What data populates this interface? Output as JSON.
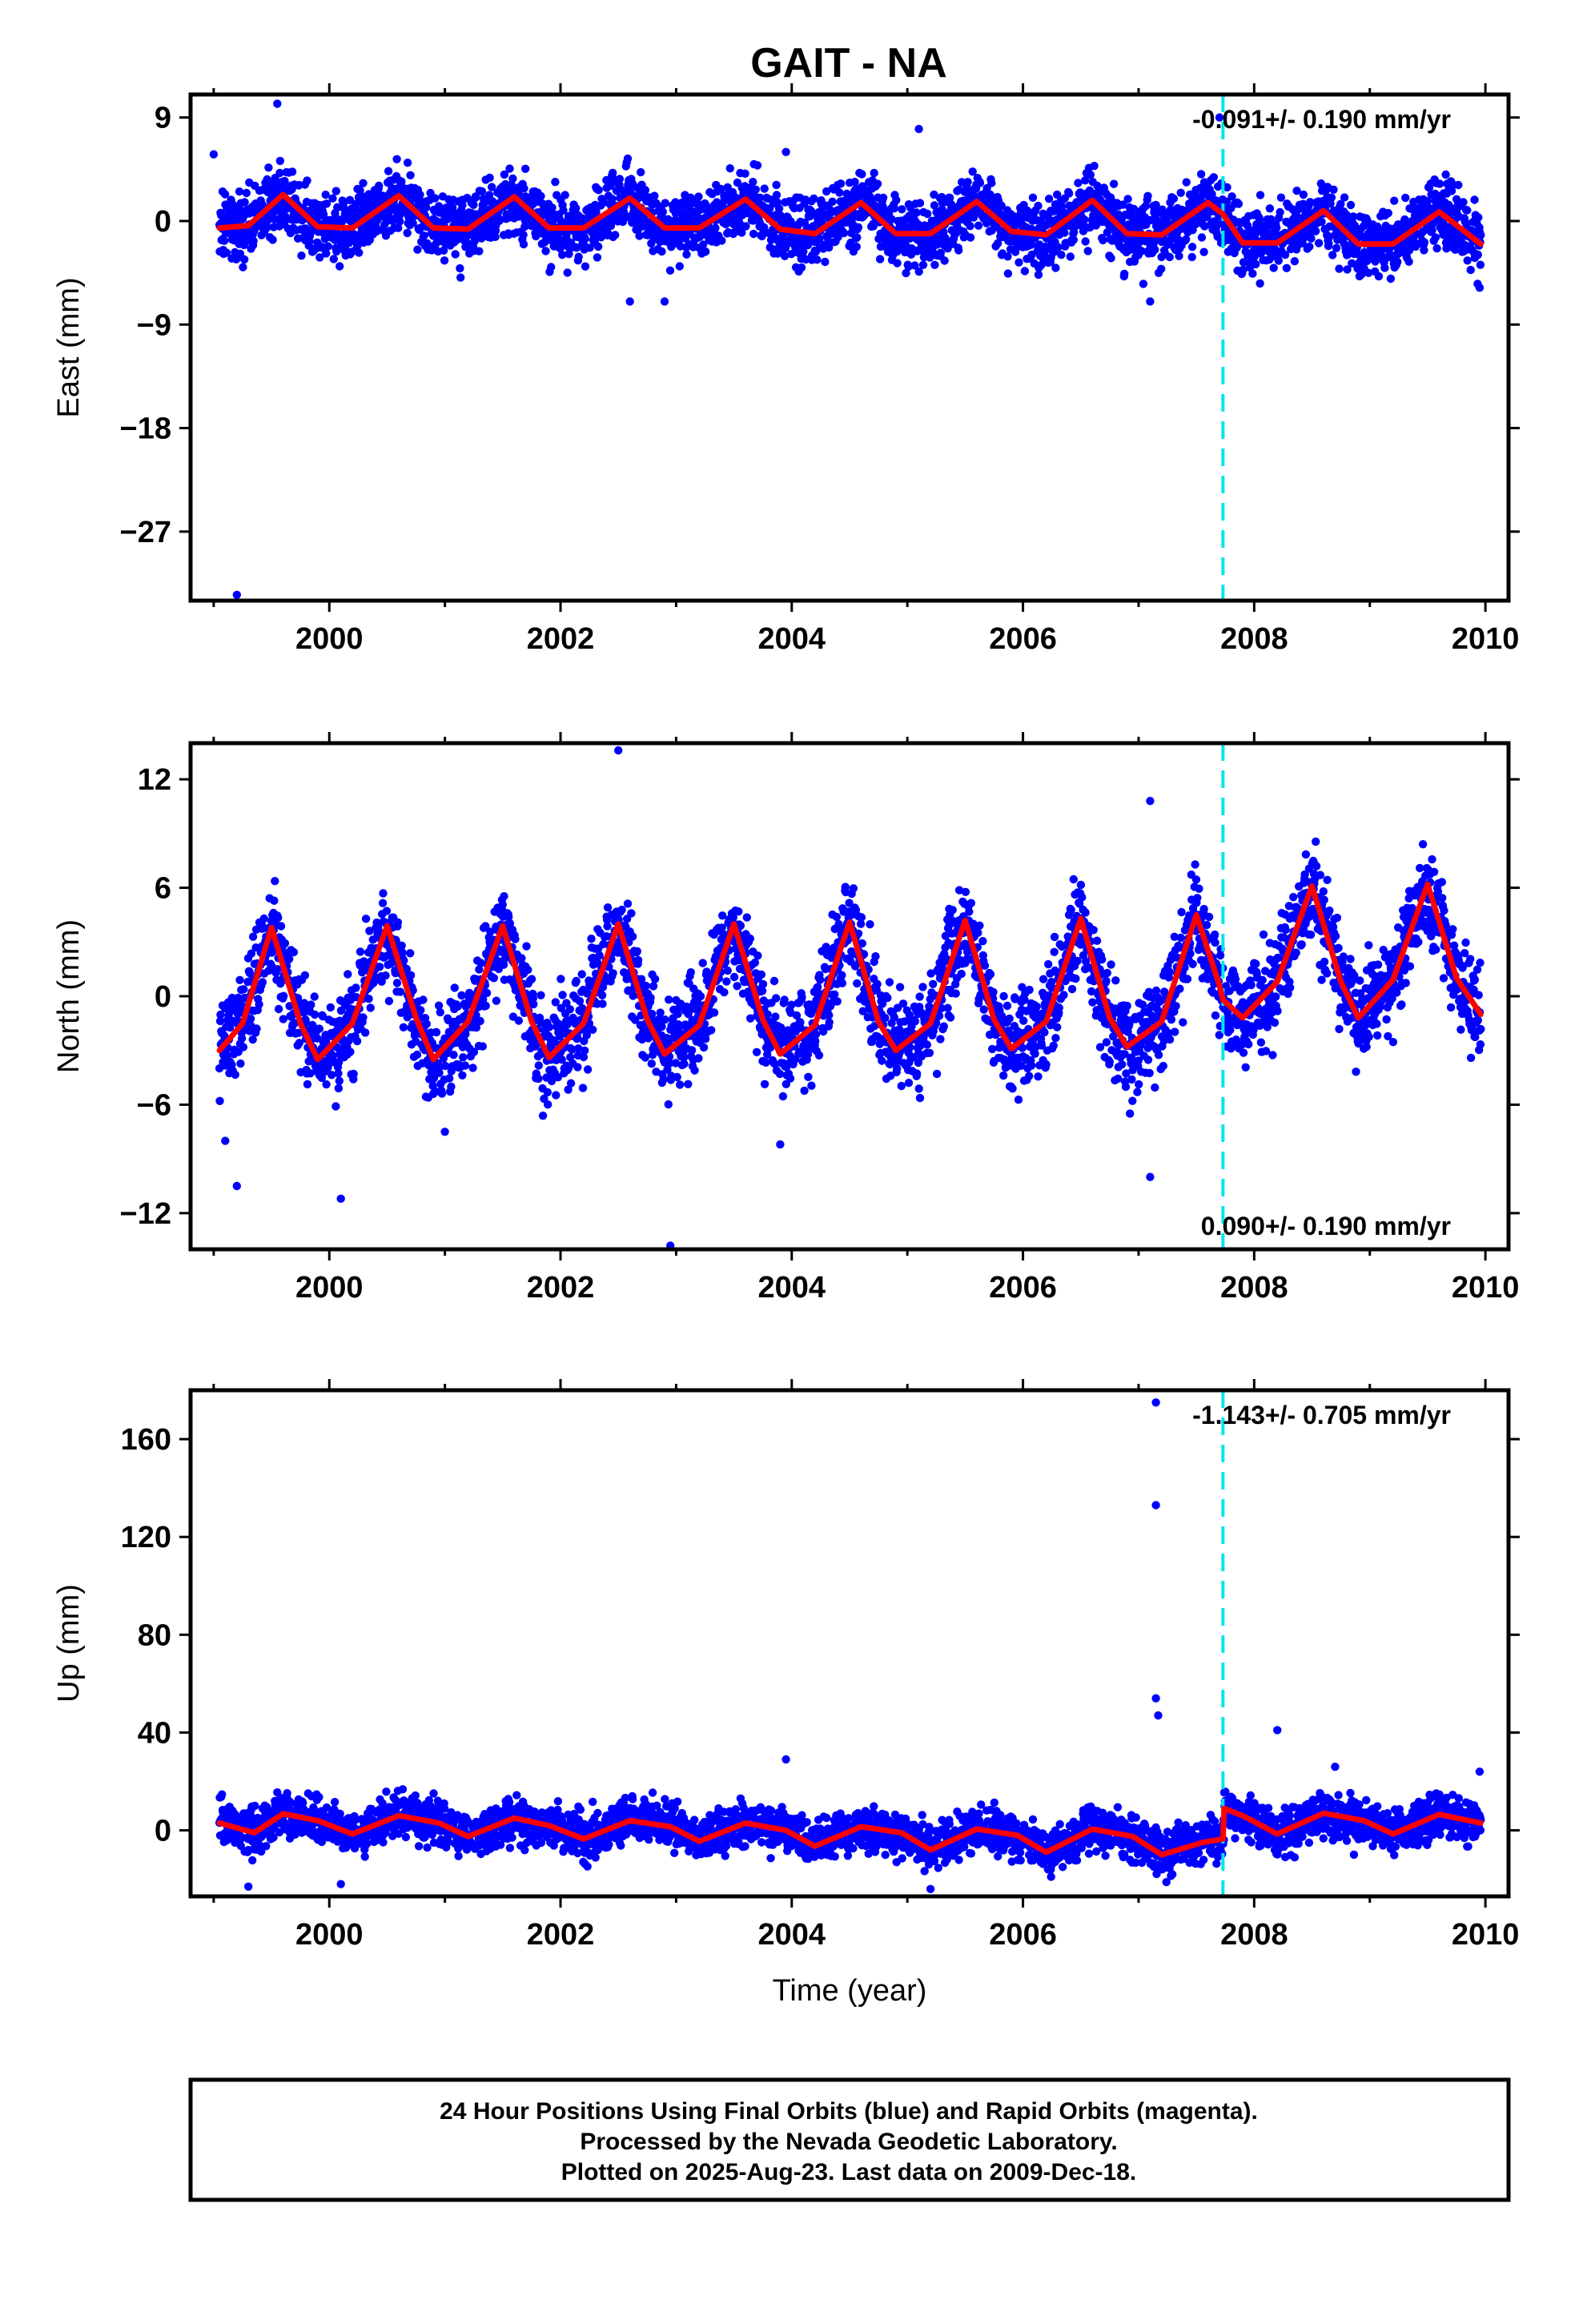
{
  "title": "GAIT - NA",
  "footer": {
    "line1": "24 Hour Positions Using Final Orbits (blue) and Rapid Orbits (magenta).",
    "line2": "Processed by the Nevada Geodetic Laboratory.",
    "line3": "Plotted on 2025-Aug-23. Last data on 2009-Dec-18."
  },
  "colors": {
    "points": "#0000ff",
    "fit": "#ff0000",
    "break": "#00e5ee",
    "frame": "#000000"
  },
  "chart_data": [
    {
      "type": "scatter",
      "component": "east",
      "ylabel": "East (mm)",
      "xlabel": "",
      "xlim": [
        1998.8,
        2010.2
      ],
      "ylim": [
        -33,
        11
      ],
      "xticks": [
        2000,
        2002,
        2004,
        2006,
        2008,
        2010
      ],
      "xtick_labels": [
        "2000",
        "2002",
        "2004",
        "2006",
        "2008",
        "2010"
      ],
      "yticks": [
        9,
        0,
        -9,
        -18,
        -27
      ],
      "ytick_labels": [
        "9",
        "0",
        "−9",
        "−18",
        "−27"
      ],
      "rate_label": "-0.091+/- 0.190 mm/yr",
      "rate_position": "top-right",
      "break_x": 2007.73,
      "series": [
        {
          "kind": "daily_positions",
          "time_range": [
            1999.05,
            2009.96
          ],
          "seasonal_amplitude": 1.5,
          "noise_sd": 1.4,
          "outliers": [
            [
              1999.2,
              -32.5
            ],
            [
              1999.55,
              10.2
            ],
            [
              2005.1,
              8.0
            ],
            [
              2007.7,
              9.0
            ],
            [
              2003.95,
              6.0
            ],
            [
              1999.0,
              5.8
            ],
            [
              2009.95,
              -5.8
            ],
            [
              2002.6,
              -7.0
            ],
            [
              2002.9,
              -7.0
            ],
            [
              2007.1,
              -7.0
            ]
          ]
        },
        {
          "kind": "model_fit",
          "x": [
            1999.05,
            1999.3,
            1999.6,
            1999.9,
            2000.2,
            2000.6,
            2000.9,
            2001.2,
            2001.6,
            2001.9,
            2002.2,
            2002.6,
            2002.9,
            2003.2,
            2003.6,
            2003.9,
            2004.2,
            2004.6,
            2004.9,
            2005.2,
            2005.6,
            2005.9,
            2006.2,
            2006.6,
            2006.9,
            2007.2,
            2007.6,
            2007.73,
            2007.9,
            2008.2,
            2008.6,
            2008.9,
            2009.2,
            2009.6,
            2009.96
          ],
          "y": [
            -0.6,
            -0.4,
            2.3,
            -0.5,
            -0.6,
            2.2,
            -0.6,
            -0.7,
            2.1,
            -0.6,
            -0.6,
            2.0,
            -0.6,
            -0.6,
            1.9,
            -0.7,
            -1.1,
            1.6,
            -1.1,
            -1.1,
            1.7,
            -0.9,
            -1.2,
            1.8,
            -1.1,
            -1.2,
            1.6,
            0.6,
            -1.9,
            -1.9,
            0.9,
            -2.0,
            -2.0,
            0.8,
            -2.0
          ]
        }
      ]
    },
    {
      "type": "scatter",
      "component": "north",
      "ylabel": "North (mm)",
      "xlabel": "",
      "xlim": [
        1998.8,
        2010.2
      ],
      "ylim": [
        -14,
        14
      ],
      "xticks": [
        2000,
        2002,
        2004,
        2006,
        2008,
        2010
      ],
      "xtick_labels": [
        "2000",
        "2002",
        "2004",
        "2006",
        "2008",
        "2010"
      ],
      "yticks": [
        12,
        6,
        0,
        -6,
        -12
      ],
      "ytick_labels": [
        "12",
        "6",
        "0",
        "−6",
        "−12"
      ],
      "rate_label": "0.090+/- 0.190 mm/yr",
      "rate_position": "bottom-right",
      "break_x": 2007.73,
      "series": [
        {
          "kind": "daily_positions",
          "time_range": [
            1999.05,
            2009.96
          ],
          "seasonal_amplitude": 3.8,
          "noise_sd": 1.3,
          "outliers": [
            [
              2002.5,
              13.6
            ],
            [
              2002.95,
              -13.8
            ],
            [
              1999.2,
              -10.5
            ],
            [
              2000.1,
              -11.2
            ],
            [
              2007.1,
              10.8
            ],
            [
              2007.1,
              -10.0
            ],
            [
              1999.1,
              -8.0
            ],
            [
              2003.9,
              -8.2
            ],
            [
              2001.0,
              -7.5
            ]
          ]
        },
        {
          "kind": "model_fit",
          "x": [
            1999.05,
            1999.25,
            1999.5,
            1999.75,
            1999.9,
            2000.2,
            2000.5,
            2000.75,
            2000.9,
            2001.2,
            2001.5,
            2001.75,
            2001.9,
            2002.2,
            2002.5,
            2002.75,
            2002.9,
            2003.2,
            2003.5,
            2003.75,
            2003.9,
            2004.2,
            2004.5,
            2004.75,
            2004.9,
            2005.2,
            2005.5,
            2005.75,
            2005.9,
            2006.2,
            2006.5,
            2006.75,
            2006.9,
            2007.2,
            2007.5,
            2007.7,
            2007.73,
            2007.9,
            2008.2,
            2008.5,
            2008.75,
            2008.9,
            2009.2,
            2009.5,
            2009.75,
            2009.96
          ],
          "y": [
            -3.0,
            -1.5,
            3.8,
            -1.5,
            -3.5,
            -1.5,
            3.9,
            -1.2,
            -3.5,
            -1.4,
            3.9,
            -1.4,
            -3.4,
            -1.5,
            4.0,
            -1.3,
            -3.2,
            -1.6,
            4.0,
            -1.3,
            -3.2,
            -1.6,
            4.1,
            -1.4,
            -3.0,
            -1.5,
            4.2,
            -1.3,
            -2.9,
            -1.4,
            4.3,
            -1.2,
            -2.8,
            -1.4,
            4.5,
            0.6,
            -0.2,
            -1.2,
            0.8,
            6.1,
            0.8,
            -1.2,
            0.9,
            6.2,
            1.0,
            -1.0
          ]
        }
      ]
    },
    {
      "type": "scatter",
      "component": "up",
      "ylabel": "Up (mm)",
      "xlabel": "Time (year)",
      "xlim": [
        1998.8,
        2010.2
      ],
      "ylim": [
        -27,
        180
      ],
      "xticks": [
        2000,
        2002,
        2004,
        2006,
        2008,
        2010
      ],
      "xtick_labels": [
        "2000",
        "2002",
        "2004",
        "2006",
        "2008",
        "2010"
      ],
      "yticks": [
        160,
        120,
        80,
        40,
        0
      ],
      "ytick_labels": [
        "160",
        "120",
        "80",
        "40",
        "0"
      ],
      "rate_label": "-1.143+/- 0.705 mm/yr",
      "rate_position": "top-right",
      "break_x": 2007.73,
      "series": [
        {
          "kind": "daily_positions",
          "time_range": [
            1999.05,
            2009.96
          ],
          "seasonal_amplitude": 4.5,
          "noise_sd": 4.5,
          "outliers": [
            [
              2007.15,
              175
            ],
            [
              2007.15,
              133
            ],
            [
              2007.15,
              54
            ],
            [
              2007.17,
              47
            ],
            [
              2008.2,
              41
            ],
            [
              2003.95,
              29
            ],
            [
              2009.95,
              24
            ],
            [
              2008.7,
              26
            ],
            [
              1999.3,
              -23
            ],
            [
              2005.2,
              -24
            ],
            [
              2000.1,
              -22
            ]
          ]
        },
        {
          "kind": "model_fit",
          "x": [
            1999.05,
            1999.35,
            1999.6,
            1999.9,
            2000.2,
            2000.6,
            2000.95,
            2001.2,
            2001.6,
            2001.9,
            2002.2,
            2002.6,
            2002.95,
            2003.2,
            2003.6,
            2003.95,
            2004.2,
            2004.6,
            2004.95,
            2005.2,
            2005.6,
            2005.95,
            2006.2,
            2006.6,
            2006.95,
            2007.2,
            2007.55,
            2007.73,
            2007.74,
            2007.9,
            2008.2,
            2008.6,
            2008.95,
            2009.2,
            2009.6,
            2009.96
          ],
          "y": [
            3.0,
            -1.0,
            6.8,
            4.0,
            -1.5,
            6.0,
            3.0,
            -2.5,
            5.0,
            2.0,
            -3.5,
            4.0,
            1.5,
            -4.5,
            3.0,
            0.0,
            -6.5,
            1.5,
            -1.0,
            -8.0,
            0.5,
            -2.0,
            -9.0,
            0.5,
            -2.5,
            -10.0,
            -5.0,
            -3.5,
            9.0,
            6.0,
            -1.5,
            7.0,
            4.0,
            -1.5,
            6.5,
            3.0
          ]
        }
      ]
    }
  ]
}
